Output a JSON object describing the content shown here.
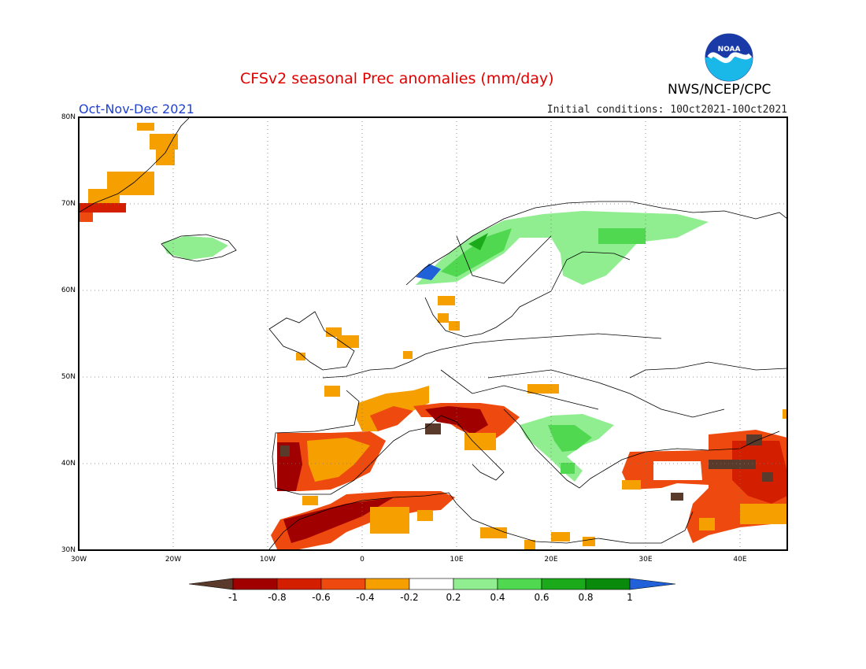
{
  "header": {
    "title": "CFSv2 seasonal Prec anomalies (mm/day)",
    "period": "Oct-Nov-Dec 2021",
    "initial_conditions": "Initial conditions: 10Oct2021-10Oct2021",
    "agency": "NWS/NCEP/CPC",
    "logo_text": "NOAA"
  },
  "axes": {
    "lat_labels": [
      "80N",
      "70N",
      "60N",
      "50N",
      "40N",
      "30N"
    ],
    "lon_labels": [
      "30W",
      "20W",
      "10W",
      "0",
      "10E",
      "20E",
      "30E",
      "40E"
    ]
  },
  "colorbar": {
    "labels": [
      "-1",
      "-0.8",
      "-0.6",
      "-0.4",
      "-0.2",
      "0.2",
      "0.4",
      "0.6",
      "0.8",
      "1"
    ],
    "colors": [
      "#5a3a2a",
      "#a00000",
      "#d41e00",
      "#ee4a10",
      "#f5a000",
      "#ffffff",
      "#90ee90",
      "#50d850",
      "#1aaa1a",
      "#0a8a0a",
      "#2060d8"
    ]
  },
  "legend_colors": {
    "dark_brown": "#5a3a2a",
    "dark_red": "#a00000",
    "red": "#d41e00",
    "orange_red": "#ee4a10",
    "orange": "#f5a000",
    "light_green": "#90ee90",
    "green": "#50d850",
    "mid_green": "#1aaa1a",
    "dark_green": "#0a8a0a",
    "blue": "#2060d8"
  }
}
